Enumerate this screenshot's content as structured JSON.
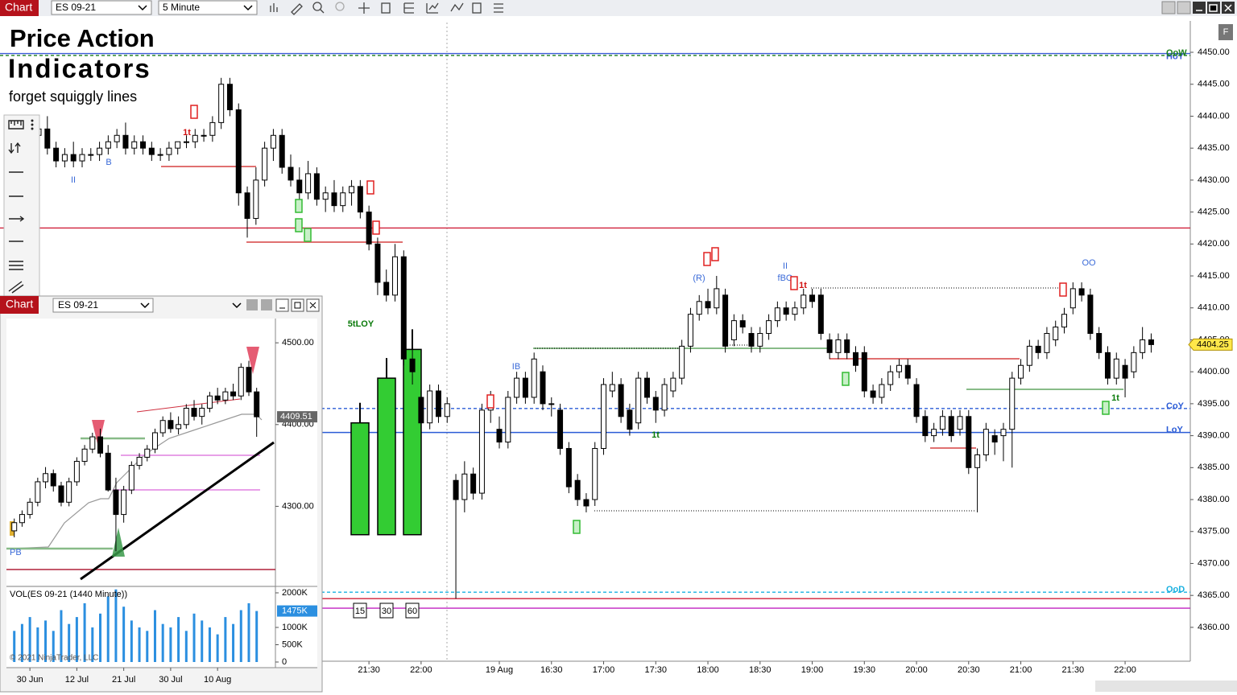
{
  "toolbar": {
    "app": "Chart",
    "instrument": "ES 09-21",
    "interval": "5 Minute"
  },
  "main": {
    "type": "candlestick",
    "title": "Price Action",
    "subtitle": "Indicators",
    "tagline": "forget squiggly lines",
    "button": "F",
    "xlim": [
      -4.45,
      132.5
    ],
    "ylim": [
      4354.7,
      4454.66
    ],
    "yticks": [
      {
        "value": 4360,
        "label": "4360.00"
      },
      {
        "value": 4365,
        "label": "4365.00"
      },
      {
        "value": 4370,
        "label": "4370.00"
      },
      {
        "value": 4375,
        "label": "4375.00"
      },
      {
        "value": 4380,
        "label": "4380.00"
      },
      {
        "value": 4385,
        "label": "4385.00"
      },
      {
        "value": 4390,
        "label": "4390.00"
      },
      {
        "value": 4395,
        "label": "4395.00"
      },
      {
        "value": 4400,
        "label": "4400.00"
      },
      {
        "value": 4405,
        "label": "4405.00"
      },
      {
        "value": 4410,
        "label": "4410.00"
      },
      {
        "value": 4415,
        "label": "4415.00"
      },
      {
        "value": 4420,
        "label": "4420.00"
      },
      {
        "value": 4425,
        "label": "4425.00"
      },
      {
        "value": 4430,
        "label": "4430.00"
      },
      {
        "value": 4435,
        "label": "4435.00"
      },
      {
        "value": 4440,
        "label": "4440.00"
      },
      {
        "value": 4445,
        "label": "4445.00"
      },
      {
        "value": 4450,
        "label": "4450.00"
      }
    ],
    "xticks": [
      {
        "value": 38,
        "label": "21:30"
      },
      {
        "value": 44,
        "label": "22:00"
      },
      {
        "value": 53,
        "label": "19 Aug"
      },
      {
        "value": 59,
        "label": "16:30"
      },
      {
        "value": 65,
        "label": "17:00"
      },
      {
        "value": 71,
        "label": "17:30"
      },
      {
        "value": 77,
        "label": "18:00"
      },
      {
        "value": 83,
        "label": "18:30"
      },
      {
        "value": 89,
        "label": "19:00"
      },
      {
        "value": 95,
        "label": "19:30"
      },
      {
        "value": 101,
        "label": "20:00"
      },
      {
        "value": 107,
        "label": "20:30"
      },
      {
        "value": 113,
        "label": "21:00"
      },
      {
        "value": 119,
        "label": "21:30"
      },
      {
        "value": 125,
        "label": "22:00"
      }
    ],
    "up_color": "#ffffff",
    "down_color": "#000000",
    "ohlc": [
      [
        4437,
        4440,
        4435,
        4438
      ],
      [
        4438,
        4440,
        4434,
        4435
      ],
      [
        4435,
        4436,
        4432,
        4433
      ],
      [
        4433,
        4435,
        4432,
        4434
      ],
      [
        4434,
        4436,
        4432,
        4433
      ],
      [
        4433,
        4435,
        4432,
        4434
      ],
      [
        4434,
        4435,
        4433,
        4434
      ],
      [
        4434,
        4436,
        4433,
        4435
      ],
      [
        4435,
        4437,
        4434,
        4436
      ],
      [
        4436,
        4438,
        4435,
        4437
      ],
      [
        4437,
        4439,
        4434,
        4435
      ],
      [
        4435,
        4437,
        4434,
        4436
      ],
      [
        4436,
        4437,
        4434,
        4435
      ],
      [
        4435,
        4436,
        4433,
        4434
      ],
      [
        4434,
        4435,
        4433,
        4434
      ],
      [
        4434,
        4436,
        4433,
        4435
      ],
      [
        4435,
        4436,
        4434,
        4436
      ],
      [
        4436,
        4437,
        4435,
        4436
      ],
      [
        4436,
        4438,
        4435,
        4437
      ],
      [
        4437,
        4438,
        4436,
        4437
      ],
      [
        4437,
        4440,
        4436,
        4439
      ],
      [
        4439,
        4446,
        4438,
        4445
      ],
      [
        4445,
        4446,
        4440,
        4441
      ],
      [
        4441,
        4442,
        4426,
        4428
      ],
      [
        4428,
        4429,
        4421,
        4424
      ],
      [
        4424,
        4432,
        4423,
        4430
      ],
      [
        4430,
        4436,
        4429,
        4435
      ],
      [
        4435,
        4438,
        4433,
        4437
      ],
      [
        4437,
        4438,
        4431,
        4432
      ],
      [
        4432,
        4434,
        4429,
        4430
      ],
      [
        4430,
        4432,
        4427,
        4428
      ],
      [
        4428,
        4433,
        4427,
        4431
      ],
      [
        4431,
        4432,
        4426,
        4427
      ],
      [
        4427,
        4429,
        4425,
        4428
      ],
      [
        4428,
        4430,
        4425,
        4426
      ],
      [
        4426,
        4429,
        4425,
        4428
      ],
      [
        4428,
        4430,
        4426,
        4429
      ],
      [
        4429,
        4430,
        4424,
        4425
      ],
      [
        4425,
        4426,
        4419,
        4420
      ],
      [
        4420,
        4421,
        4412,
        4414
      ],
      [
        4414,
        4416,
        4411,
        4412
      ],
      [
        4412,
        4420,
        4411,
        4418
      ],
      [
        4418,
        4419,
        4401,
        4402
      ],
      [
        4402,
        4405,
        4398,
        4400
      ],
      [
        4396,
        4397,
        4391,
        4392
      ],
      [
        4392,
        4398,
        4391,
        4397
      ],
      [
        4397,
        4398,
        4392,
        4393
      ],
      [
        4393,
        4396,
        4392,
        4395
      ],
      [
        4383,
        4384,
        4364.5,
        4380
      ],
      [
        4380,
        4386,
        4378,
        4384
      ],
      [
        4384,
        4385,
        4380,
        4381
      ],
      [
        4381,
        4395,
        4380,
        4394
      ],
      [
        4394,
        4397,
        4392,
        4396
      ],
      [
        4391,
        4393,
        4388,
        4389
      ],
      [
        4389,
        4397,
        4388,
        4396
      ],
      [
        4396,
        4400,
        4395,
        4399
      ],
      [
        4399,
        4400,
        4395,
        4396
      ],
      [
        4396,
        4403,
        4395,
        4402
      ],
      [
        4400,
        4401,
        4394,
        4395
      ],
      [
        4395,
        4396,
        4393,
        4395
      ],
      [
        4394,
        4395,
        4387,
        4388
      ],
      [
        4388,
        4389,
        4381,
        4382
      ],
      [
        4383,
        4384,
        4379,
        4380
      ],
      [
        4380,
        4381,
        4378,
        4379
      ],
      [
        4380,
        4389,
        4379,
        4388
      ],
      [
        4388,
        4399,
        4387,
        4398
      ],
      [
        4397,
        4400,
        4396,
        4398
      ],
      [
        4398,
        4399,
        4392,
        4393
      ],
      [
        4394,
        4395,
        4390,
        4391
      ],
      [
        4392,
        4400,
        4391,
        4399
      ],
      [
        4399,
        4400,
        4395,
        4396
      ],
      [
        4396,
        4397,
        4392,
        4394
      ],
      [
        4394,
        4399,
        4393,
        4398
      ],
      [
        4397,
        4400,
        4396,
        4399
      ],
      [
        4399,
        4405,
        4398,
        4404
      ],
      [
        4404,
        4410,
        4403,
        4409
      ],
      [
        4409,
        4412,
        4408,
        4411
      ],
      [
        4411,
        4413,
        4409,
        4410
      ],
      [
        4410,
        4415,
        4409,
        4413
      ],
      [
        4412,
        4413,
        4403,
        4404
      ],
      [
        4405,
        4409,
        4404,
        4408
      ],
      [
        4408,
        4409,
        4406,
        4407
      ],
      [
        4406,
        4407,
        4403,
        4404
      ],
      [
        4404,
        4407,
        4403,
        4406
      ],
      [
        4406,
        4409,
        4405,
        4408
      ],
      [
        4408,
        4411,
        4407,
        4410
      ],
      [
        4410,
        4411,
        4408,
        4409
      ],
      [
        4409,
        4411,
        4408,
        4410
      ],
      [
        4410,
        4413,
        4409,
        4412
      ],
      [
        4412,
        4413,
        4410,
        4411
      ],
      [
        4412,
        4413,
        4405,
        4406
      ],
      [
        4405,
        4406,
        4402,
        4403
      ],
      [
        4403,
        4406,
        4402,
        4405
      ],
      [
        4405,
        4406,
        4402,
        4403
      ],
      [
        4403,
        4404,
        4400,
        4401
      ],
      [
        4403,
        4404,
        4396,
        4397
      ],
      [
        4397,
        4398,
        4395,
        4396
      ],
      [
        4396,
        4399,
        4395,
        4398
      ],
      [
        4398,
        4401,
        4397,
        4400
      ],
      [
        4400,
        4402,
        4399,
        4401
      ],
      [
        4401,
        4402,
        4398,
        4399
      ],
      [
        4398,
        4399,
        4392,
        4393
      ],
      [
        4393,
        4394,
        4389,
        4390
      ],
      [
        4390,
        4392,
        4389,
        4391
      ],
      [
        4391,
        4394,
        4390,
        4393
      ],
      [
        4393,
        4394,
        4389,
        4390
      ],
      [
        4391,
        4394,
        4390,
        4393
      ],
      [
        4393,
        4394,
        4384,
        4385
      ],
      [
        4385,
        4388,
        4378,
        4387
      ],
      [
        4387,
        4392,
        4386,
        4391
      ],
      [
        4390,
        4391,
        4387,
        4389
      ],
      [
        4390,
        4392,
        4386,
        4391
      ],
      [
        4391,
        4400,
        4385,
        4399
      ],
      [
        4399,
        4402,
        4398,
        4401
      ],
      [
        4401,
        4405,
        4400,
        4404
      ],
      [
        4404,
        4405,
        4402,
        4403
      ],
      [
        4403,
        4407,
        4402,
        4406
      ],
      [
        4405,
        4408,
        4404,
        4407
      ],
      [
        4407,
        4410,
        4406,
        4409
      ],
      [
        4410,
        4414,
        4409,
        4413
      ],
      [
        4413,
        4414,
        4411,
        4412
      ],
      [
        4412,
        4413,
        4405,
        4406
      ],
      [
        4406,
        4407,
        4402,
        4403
      ],
      [
        4403,
        4404,
        4398,
        4399
      ],
      [
        4399,
        4403,
        4398,
        4402
      ],
      [
        4401,
        4402,
        4396,
        4399
      ],
      [
        4400,
        4404,
        4399,
        4403
      ],
      [
        4403,
        4407,
        4402,
        4405
      ],
      [
        4405,
        4406,
        4403,
        4404.25
      ]
    ],
    "last_price": {
      "value": 4404.25,
      "label": "4404.25"
    },
    "levels": [
      {
        "value": 4449.8,
        "color": "#3b5bd6",
        "label": "HoY"
      },
      {
        "value": 4449.5,
        "color": "#1a7f1a",
        "label": "OoW"
      },
      {
        "value": 4422.5,
        "color": "#d0203a"
      },
      {
        "value": 4394.25,
        "color": "#2a5bd6",
        "label": "CoY"
      },
      {
        "value": 4390.5,
        "color": "#2a5bd6",
        "label": "LoY"
      },
      {
        "value": 4365.5,
        "color": "#18b0e0",
        "label": "OoD"
      },
      {
        "value": 4364.5,
        "color": "#d0203a"
      },
      {
        "value": 4363,
        "color": "#c020c0"
      }
    ],
    "htf_bars": [
      {
        "label": "15",
        "low": 4374.5,
        "high": 4392
      },
      {
        "label": "30",
        "low": 4374.5,
        "high": 4399
      },
      {
        "label": "60",
        "low": 4374.5,
        "high": 4403.5
      }
    ],
    "htf_color": "#33cc33",
    "annotations": [
      "5tLOY",
      "IB",
      "(R)",
      "fBO",
      "II",
      "OO",
      "II",
      "B",
      "1t",
      "1t",
      "1t",
      "1t"
    ]
  },
  "inset": {
    "app": "Chart",
    "instrument": "ES 09-21",
    "type": "candlestick",
    "xlim": [
      -1,
      33.4
    ],
    "ylim": [
      4203.0,
      4529.7
    ],
    "yticks": [
      {
        "value": 4300,
        "label": "4300.00"
      },
      {
        "value": 4400,
        "label": "4400.00"
      },
      {
        "value": 4500,
        "label": "4500.00"
      }
    ],
    "xticks": [
      {
        "value": 2,
        "label": "30 Jun"
      },
      {
        "value": 8,
        "label": "12 Jul"
      },
      {
        "value": 14,
        "label": "21 Jul"
      },
      {
        "value": 20,
        "label": "30 Jul"
      },
      {
        "value": 26,
        "label": "10 Aug"
      }
    ],
    "ohlc": [
      [
        4270,
        4285,
        4262,
        4280
      ],
      [
        4280,
        4295,
        4275,
        4290
      ],
      [
        4290,
        4310,
        4285,
        4305
      ],
      [
        4305,
        4335,
        4300,
        4330
      ],
      [
        4330,
        4348,
        4322,
        4340
      ],
      [
        4340,
        4345,
        4318,
        4325
      ],
      [
        4325,
        4330,
        4300,
        4305
      ],
      [
        4305,
        4335,
        4300,
        4330
      ],
      [
        4330,
        4360,
        4325,
        4355
      ],
      [
        4355,
        4375,
        4350,
        4370
      ],
      [
        4370,
        4390,
        4365,
        4385
      ],
      [
        4385,
        4395,
        4360,
        4365
      ],
      [
        4365,
        4375,
        4318,
        4320
      ],
      [
        4320,
        4335,
        4245,
        4290
      ],
      [
        4290,
        4325,
        4280,
        4320
      ],
      [
        4320,
        4355,
        4315,
        4350
      ],
      [
        4350,
        4365,
        4345,
        4360
      ],
      [
        4360,
        4375,
        4355,
        4370
      ],
      [
        4370,
        4395,
        4365,
        4390
      ],
      [
        4390,
        4410,
        4385,
        4405
      ],
      [
        4405,
        4415,
        4390,
        4395
      ],
      [
        4395,
        4410,
        4388,
        4400
      ],
      [
        4400,
        4425,
        4395,
        4420
      ],
      [
        4420,
        4430,
        4405,
        4410
      ],
      [
        4410,
        4425,
        4400,
        4420
      ],
      [
        4420,
        4440,
        4415,
        4435
      ],
      [
        4435,
        4445,
        4425,
        4430
      ],
      [
        4430,
        4445,
        4425,
        4440
      ],
      [
        4440,
        4450,
        4430,
        4435
      ],
      [
        4435,
        4475,
        4430,
        4470
      ],
      [
        4470,
        4478,
        4435,
        4440
      ],
      [
        4440,
        4445,
        4385,
        4409.51
      ]
    ],
    "last_price": {
      "value": 4409.51,
      "label": "4409.51"
    },
    "marker": "PB",
    "volume": {
      "title": "VOL(ES 09-21 (1440 Minute))",
      "color": "#2b8fe0",
      "ylim": [
        -163000,
        2163000
      ],
      "yticks": [
        0,
        {
          "value": 500000,
          "label": "500K"
        },
        {
          "value": 1000000,
          "label": "1000K"
        },
        {
          "value": 2000000,
          "label": "2000K"
        }
      ],
      "values": [
        900000,
        1100000,
        1300000,
        1000000,
        1200000,
        900000,
        1500000,
        1100000,
        1300000,
        1700000,
        1000000,
        1400000,
        1900000,
        2100000,
        1600000,
        1200000,
        1000000,
        900000,
        1500000,
        1100000,
        1000000,
        1300000,
        900000,
        1400000,
        1200000,
        1000000,
        800000,
        1300000,
        1100000,
        1500000,
        1700000,
        1475000
      ],
      "last": {
        "value": 1475000,
        "label": "1475K"
      }
    },
    "copyright": "© 2021 NinjaTrader, LLC"
  }
}
